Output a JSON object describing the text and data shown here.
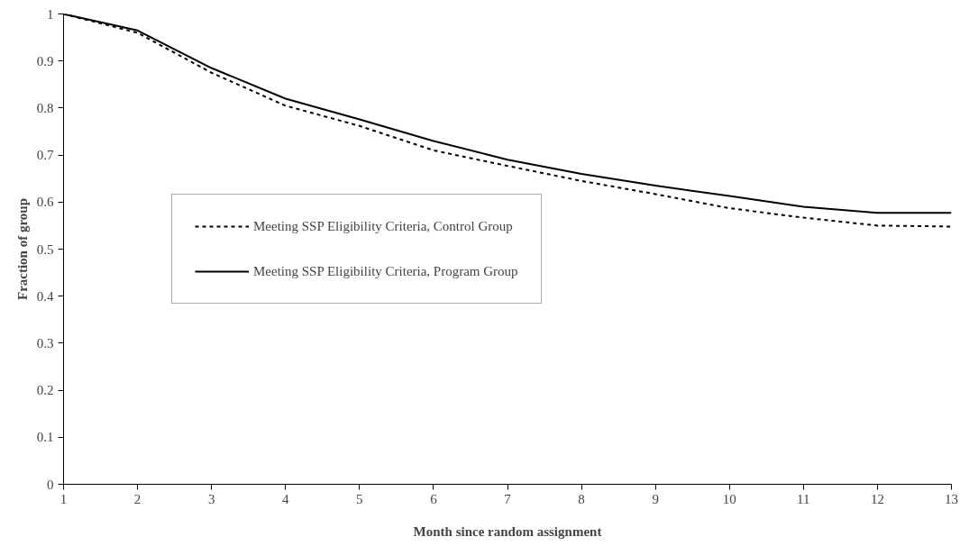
{
  "chart_data": {
    "type": "line",
    "xlabel": "Month since random assignment",
    "ylabel": "Fraction of group",
    "x": [
      1,
      2,
      3,
      4,
      5,
      6,
      7,
      8,
      9,
      10,
      11,
      12,
      13
    ],
    "series": [
      {
        "name": "Meeting SSP Eligibility Criteria, Control Group",
        "color": "#000000",
        "line_style": "dotted",
        "values": [
          1,
          0.96,
          0.875,
          0.805,
          0.762,
          0.71,
          0.677,
          0.645,
          0.617,
          0.587,
          0.567,
          0.55,
          0.548
        ]
      },
      {
        "name": "Meeting SSP Eligibility Criteria, Program Group",
        "color": "#000000",
        "line_style": "solid",
        "values": [
          1,
          0.965,
          0.885,
          0.82,
          0.776,
          0.73,
          0.69,
          0.66,
          0.635,
          0.613,
          0.59,
          0.577,
          0.577
        ]
      }
    ],
    "xlim": [
      1,
      13
    ],
    "xticks": [
      1,
      2,
      3,
      4,
      5,
      6,
      7,
      8,
      9,
      10,
      11,
      12,
      13
    ],
    "ylim": [
      0,
      1
    ],
    "yticks": [
      0,
      0.1,
      0.2,
      0.3,
      0.4,
      0.5,
      0.6,
      0.7,
      0.8,
      0.9,
      1
    ],
    "grid": false,
    "legend": "left",
    "marker": "none"
  }
}
